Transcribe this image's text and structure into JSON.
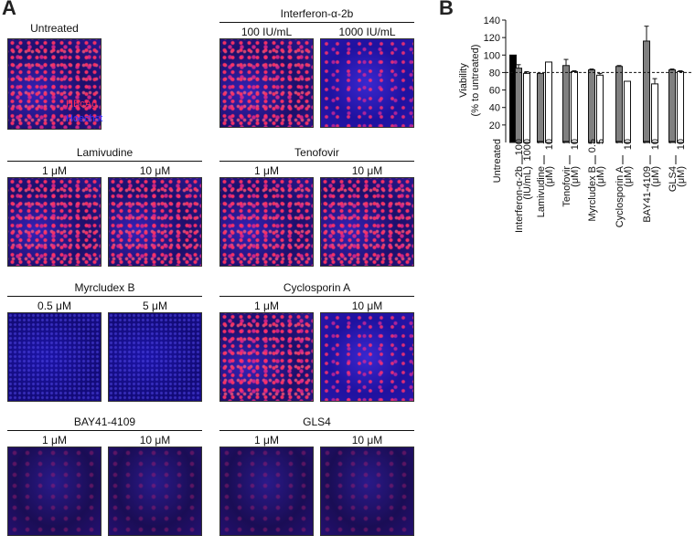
{
  "panel_a": {
    "label": "A",
    "untreated": "Untreated",
    "stains": [
      "HBcAg",
      "Hoechst"
    ],
    "treatments": [
      {
        "name": "Interferon-α-2b",
        "conditions": [
          "100 IU/mL",
          "1000 IU/mL"
        ]
      },
      {
        "name": "Lamivudine",
        "conditions": [
          "1 μM",
          "10 μM"
        ]
      },
      {
        "name": "Tenofovir",
        "conditions": [
          "1 μM",
          "10 μM"
        ]
      },
      {
        "name": "Myrcludex B",
        "conditions": [
          "0.5 μM",
          "5 μM"
        ]
      },
      {
        "name": "Cyclosporin A",
        "conditions": [
          "1 μM",
          "10 μM"
        ]
      },
      {
        "name": "BAY41-4109",
        "conditions": [
          "1 μM",
          "10 μM"
        ]
      },
      {
        "name": "GLS4",
        "conditions": [
          "1 μM",
          "10 μM"
        ]
      }
    ]
  },
  "chart_data": {
    "type": "bar",
    "panel_label": "B",
    "ylabel": [
      "Viability",
      "(% to untreated)"
    ],
    "ylim": [
      0,
      140
    ],
    "yticks": [
      20,
      40,
      60,
      80,
      100,
      120,
      140
    ],
    "reference_line": 80,
    "groups": [
      {
        "name": "Untreated",
        "labels": [
          null
        ],
        "values": [
          100
        ],
        "errors": [
          null
        ],
        "colors": [
          "#000000"
        ]
      },
      {
        "name": "Interferon-α-2b",
        "unit": "(IU/mL)",
        "labels": [
          "100",
          "1000"
        ],
        "values": [
          85,
          79
        ],
        "errors": [
          4,
          2
        ],
        "colors": [
          "#808080",
          "#ffffff"
        ]
      },
      {
        "name": "Lamivudine",
        "unit": "(μM)",
        "labels": [
          "1",
          "10"
        ],
        "values": [
          79,
          92
        ],
        "errors": [
          null,
          null
        ],
        "colors": [
          "#808080",
          "#ffffff"
        ]
      },
      {
        "name": "Tenofovir",
        "unit": "(μM)",
        "labels": [
          "1",
          "10"
        ],
        "values": [
          88,
          81
        ],
        "errors": [
          7,
          1
        ],
        "colors": [
          "#808080",
          "#ffffff"
        ]
      },
      {
        "name": "Myrcludex B",
        "unit": "(μM)",
        "labels": [
          "0.5",
          "5"
        ],
        "values": [
          83,
          77
        ],
        "errors": [
          1,
          2
        ],
        "colors": [
          "#808080",
          "#ffffff"
        ]
      },
      {
        "name": "Cyclosporin A",
        "unit": "(μM)",
        "labels": [
          "1",
          "10"
        ],
        "values": [
          87,
          70
        ],
        "errors": [
          1,
          null
        ],
        "colors": [
          "#808080",
          "#ffffff"
        ]
      },
      {
        "name": "BAY41-4109",
        "unit": "(μM)",
        "labels": [
          "1",
          "10"
        ],
        "values": [
          116,
          67
        ],
        "errors": [
          17,
          6
        ],
        "colors": [
          "#808080",
          "#ffffff"
        ]
      },
      {
        "name": "GLS4",
        "unit": "(μM)",
        "labels": [
          "1",
          "10"
        ],
        "values": [
          83,
          81
        ],
        "errors": [
          1,
          1
        ],
        "colors": [
          "#808080",
          "#ffffff"
        ]
      }
    ]
  }
}
